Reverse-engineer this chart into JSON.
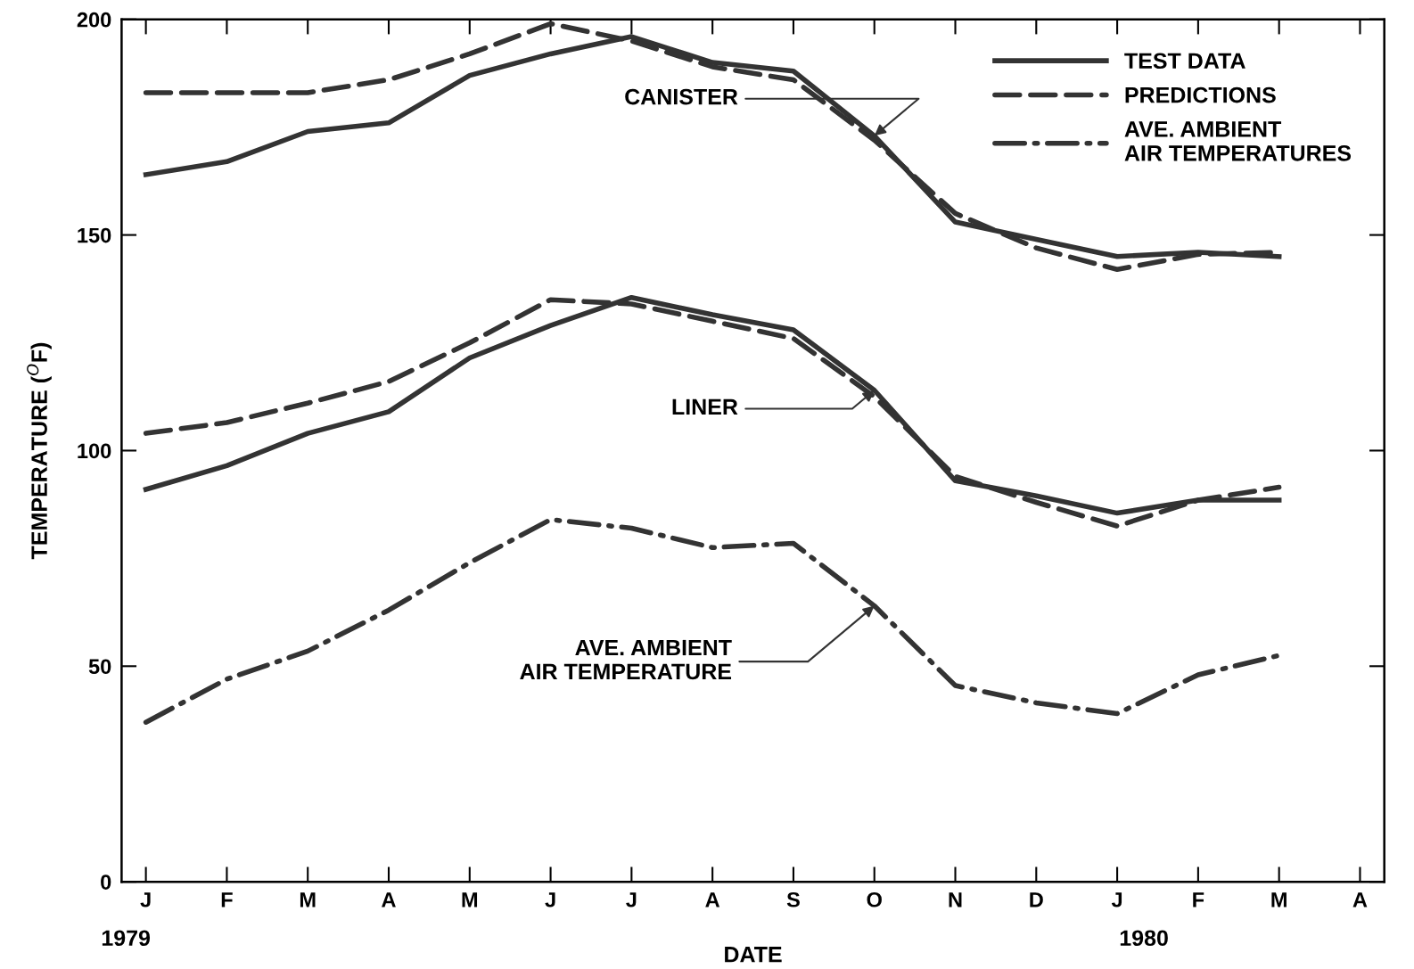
{
  "chart_data": {
    "type": "line",
    "xlabel": "DATE",
    "ylabel": "TEMPERATURE ($^{O}$F)",
    "categories": [
      "J",
      "F",
      "M",
      "A",
      "M",
      "J",
      "J",
      "A",
      "S",
      "O",
      "N",
      "D",
      "J",
      "F",
      "M",
      "A"
    ],
    "ylim": [
      0,
      200
    ],
    "yticks": [
      0,
      50,
      100,
      150,
      200
    ],
    "grid": false,
    "legend": "top right",
    "series": [
      {
        "name": "TEST DATA",
        "color": "#333333",
        "line_style": "solid",
        "values": [
          164,
          167,
          174,
          176,
          187,
          192,
          196,
          190,
          188,
          173,
          153,
          149,
          145,
          146,
          145,
          null
        ]
      },
      {
        "name": "PREDICTIONS",
        "color": "#333333",
        "line_style": "dashed",
        "values": [
          183,
          183,
          183,
          186,
          192,
          199,
          195,
          189,
          186,
          172,
          155,
          147,
          142,
          145.5,
          146,
          null
        ]
      },
      {
        "color": "#333333",
        "line_style": "solid",
        "values": [
          91,
          96.5,
          104,
          109,
          121.5,
          129,
          135.5,
          131.5,
          128,
          114,
          93,
          89.5,
          85.5,
          88.5,
          88.5,
          null
        ]
      },
      {
        "color": "#333333",
        "line_style": "dashed",
        "values": [
          104,
          106.5,
          111,
          116,
          125,
          135,
          134,
          130,
          126,
          112.5,
          94,
          88,
          82.5,
          88.5,
          91.5,
          null
        ]
      },
      {
        "name": "AVE. AMBIENT\nAIR TEMPERATURES",
        "color": "#333333",
        "line_style": "dashdot",
        "values": [
          37,
          47,
          53.5,
          63,
          74,
          84,
          82,
          77.5,
          78.5,
          64,
          45.5,
          41.5,
          39,
          48,
          52.5,
          null
        ]
      }
    ],
    "annotations": [
      {
        "text": "CANISTER",
        "x": "O",
        "y": 173
      },
      {
        "text": "LINER",
        "x": "O",
        "y": 114
      },
      {
        "text": "AVE. AMBIENT\nAIR TEMPERATURE",
        "x": "O",
        "y": 64
      },
      "1979",
      "1980"
    ]
  }
}
